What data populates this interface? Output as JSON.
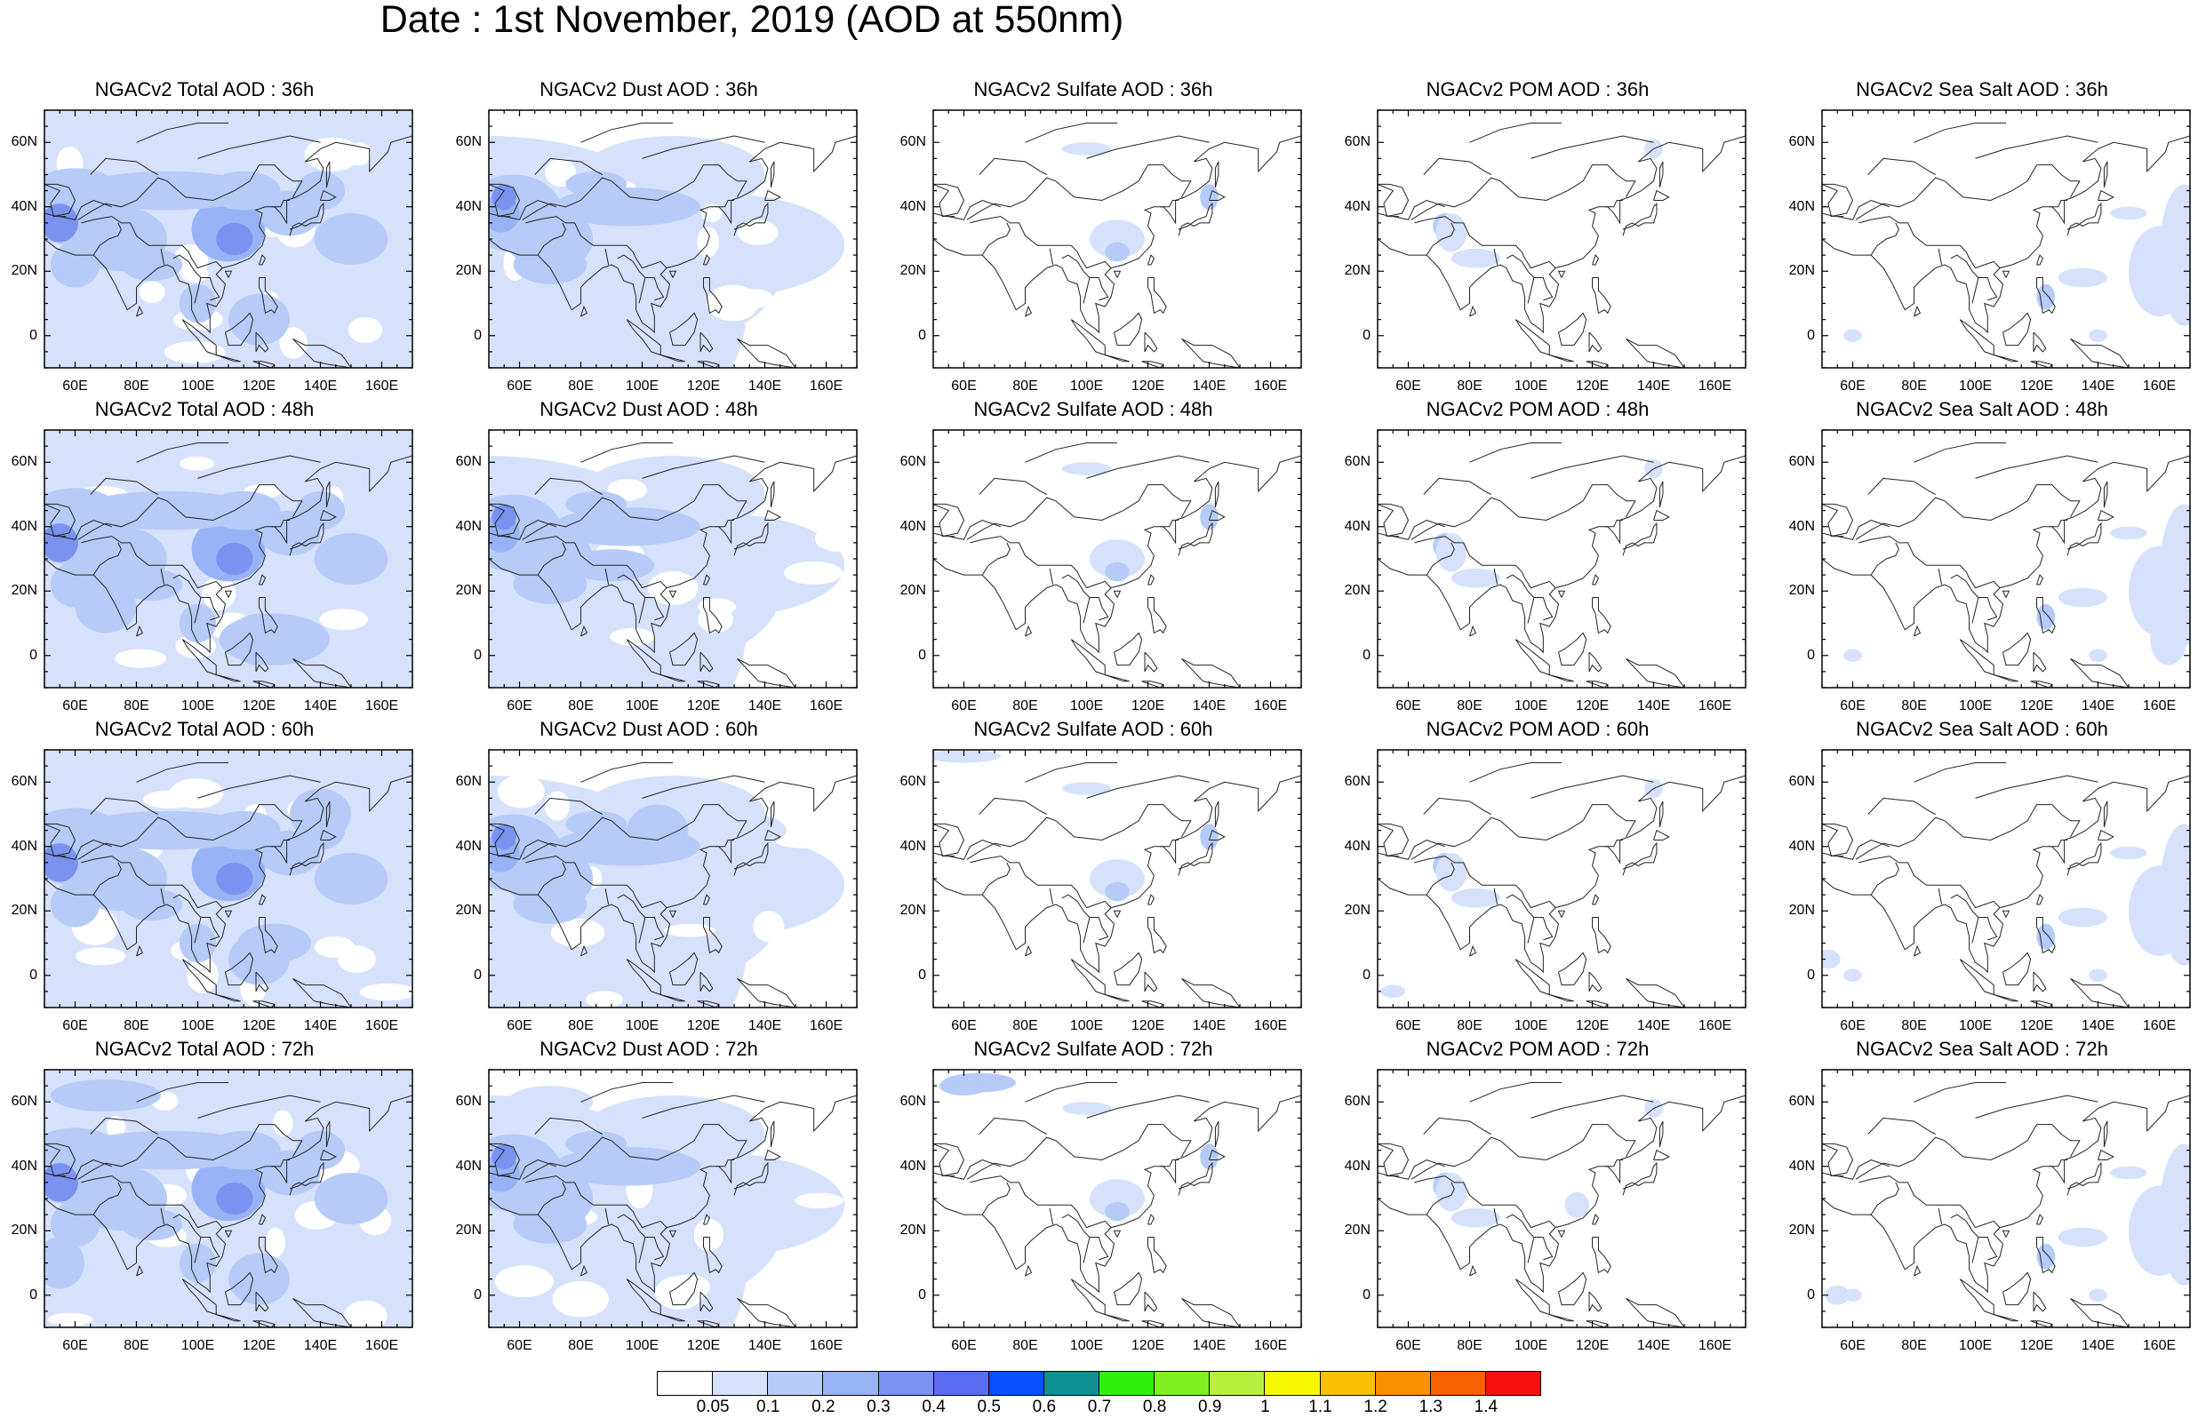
{
  "title": "Date : 1st November, 2019 (AOD at 550nm)",
  "panels": [
    [
      "NGACv2 Total AOD : 36h",
      "NGACv2 Dust AOD : 36h",
      "NGACv2 Sulfate AOD : 36h",
      "NGACv2 POM AOD : 36h",
      "NGACv2 Sea Salt AOD : 36h"
    ],
    [
      "NGACv2 Total AOD : 48h",
      "NGACv2 Dust AOD : 48h",
      "NGACv2 Sulfate AOD : 48h",
      "NGACv2 POM AOD : 48h",
      "NGACv2 Sea Salt AOD : 48h"
    ],
    [
      "NGACv2 Total AOD : 60h",
      "NGACv2 Dust AOD : 60h",
      "NGACv2 Sulfate AOD : 60h",
      "NGACv2 POM AOD : 60h",
      "NGACv2 Sea Salt AOD : 60h"
    ],
    [
      "NGACv2 Total AOD : 72h",
      "NGACv2 Dust AOD : 72h",
      "NGACv2 Sulfate AOD : 72h",
      "NGACv2 POM AOD : 72h",
      "NGACv2 Sea Salt  AOD : 72h"
    ]
  ],
  "lat_labels": [
    "60N",
    "40N",
    "20N",
    "0"
  ],
  "lon_labels": [
    "60E",
    "80E",
    "100E",
    "120E",
    "140E",
    "160E"
  ],
  "colorbar": {
    "labels": [
      "0.05",
      "0.1",
      "0.2",
      "0.3",
      "0.4",
      "0.5",
      "0.6",
      "0.7",
      "0.8",
      "0.9",
      "1",
      "1.1",
      "1.2",
      "1.3",
      "1.4"
    ],
    "colors": [
      "#ffffff",
      "#d6e2fb",
      "#b7cbf8",
      "#98b3f5",
      "#7a93f0",
      "#5a6df0",
      "#0a50ff",
      "#0e9090",
      "#2ff010",
      "#7ff020",
      "#b9f040",
      "#f8f800",
      "#f8c000",
      "#f89000",
      "#f86000",
      "#f81010"
    ]
  }
}
